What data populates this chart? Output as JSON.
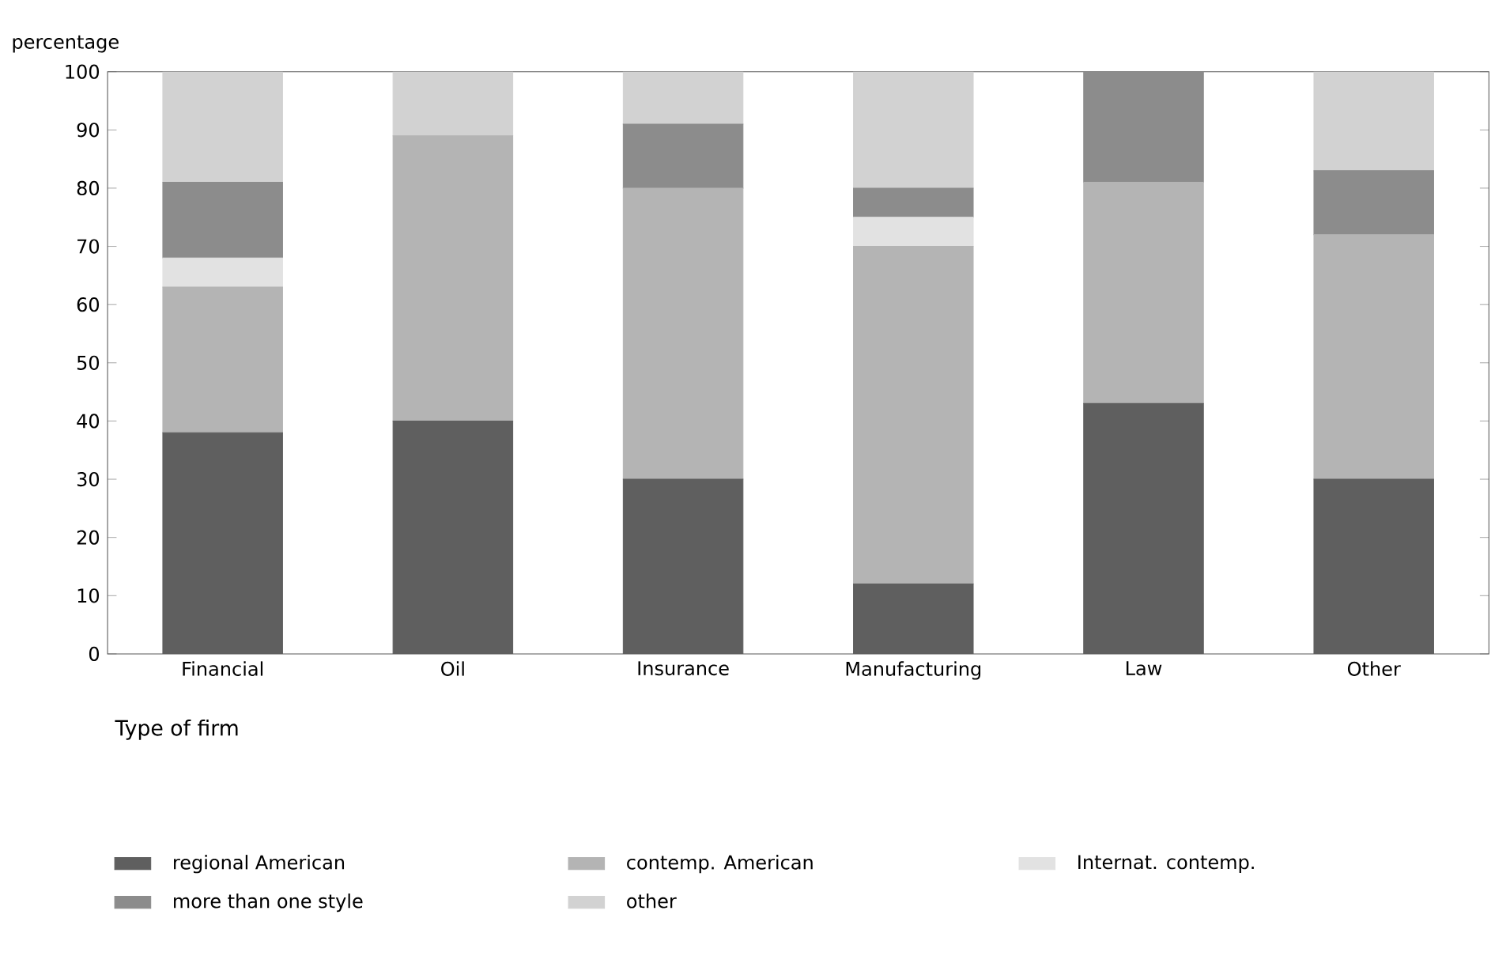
{
  "chart_data": {
    "type": "bar",
    "stacked": true,
    "xlabel": "Type of firm",
    "ylabel": "percentage",
    "categories": [
      "Financial",
      "Oil",
      "Insurance",
      "Manufacturing",
      "Law",
      "Other"
    ],
    "series": [
      {
        "name": "regional American",
        "color": "#5f5f5f",
        "values": [
          38,
          40,
          30,
          12,
          43,
          30
        ]
      },
      {
        "name": "contemp. American",
        "color": "#b4b4b4",
        "values": [
          25,
          49,
          50,
          58,
          38,
          42
        ]
      },
      {
        "name": "Internat. contemp.",
        "color": "#e2e2e2",
        "values": [
          5,
          0,
          0,
          5,
          0,
          0
        ]
      },
      {
        "name": "more than one style",
        "color": "#8c8c8c",
        "values": [
          13,
          0,
          11,
          5,
          19,
          11
        ]
      },
      {
        "name": "other",
        "color": "#d2d2d2",
        "values": [
          19,
          11,
          9,
          20,
          0,
          17
        ]
      }
    ],
    "ylim": [
      0,
      100
    ],
    "yticks": [
      0,
      10,
      20,
      30,
      40,
      50,
      60,
      70,
      80,
      90,
      100
    ],
    "legend": "bottom"
  }
}
